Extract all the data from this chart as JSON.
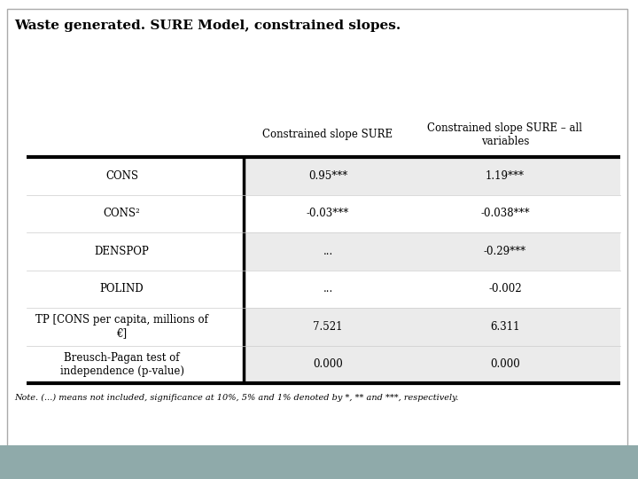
{
  "title": "Waste generated. SURE Model, constrained slopes.",
  "col_headers": [
    "",
    "Constrained slope SURE",
    "Constrained slope SURE – all\nvariables"
  ],
  "rows": [
    [
      "CONS",
      "0.95***",
      "1.19***"
    ],
    [
      "CONS²",
      "-0.03***",
      "-0.038***"
    ],
    [
      "DENSPOP",
      "...",
      "-0.29***"
    ],
    [
      "POLIND",
      "...",
      "-0.002"
    ],
    [
      "TP [CONS per capita, millions of\n€]",
      "7.521",
      "6.311"
    ],
    [
      "Breusch-Pagan test of\nindependence (p-value)",
      "0.000",
      "0.000"
    ]
  ],
  "note": "Note. (...) means not included, significance at 10%, 5% and 1% denoted by *, ** and ***, respectively.",
  "bg_color": "#ffffff",
  "footer_color": "#8FAAAA",
  "row_shaded": "#EBEBEB",
  "row_white": "#ffffff",
  "title_fontsize": 11,
  "header_fontsize": 8.5,
  "cell_fontsize": 8.5,
  "note_fontsize": 7,
  "shaded_rows": [
    0,
    2,
    4,
    5
  ]
}
